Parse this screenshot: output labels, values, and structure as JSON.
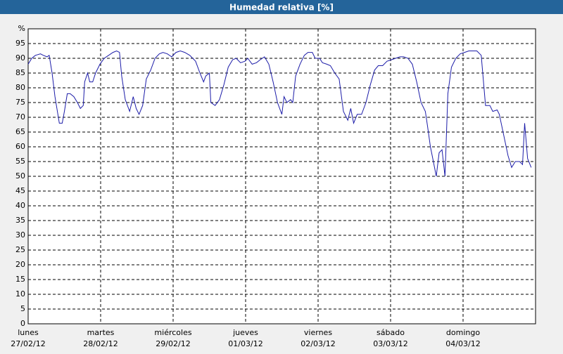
{
  "chart_data": {
    "type": "line",
    "title": "Humedad relativa [%]",
    "xlim": [
      0,
      7
    ],
    "xticks": [
      {
        "value": 0,
        "label": "lunes",
        "date": "27/02/12"
      },
      {
        "value": 1,
        "label": "martes",
        "date": "28/02/12"
      },
      {
        "value": 2,
        "label": "miércoles",
        "date": "29/02/12"
      },
      {
        "value": 3,
        "label": "jueves",
        "date": "01/03/12"
      },
      {
        "value": 4,
        "label": "viernes",
        "date": "02/03/12"
      },
      {
        "value": 5,
        "label": "sábado",
        "date": "03/03/12"
      },
      {
        "value": 6,
        "label": "domingo",
        "date": "04/03/12"
      }
    ],
    "ylim": [
      0,
      100
    ],
    "yticks": [
      0,
      5,
      10,
      15,
      20,
      25,
      30,
      35,
      40,
      45,
      50,
      55,
      60,
      65,
      70,
      75,
      80,
      85,
      90,
      95,
      {
        "value": 100,
        "label": "%"
      }
    ],
    "grid": true,
    "color": "#1c1ca8",
    "x": [
      0,
      0.05,
      0.1,
      0.17,
      0.21,
      0.26,
      0.29,
      0.33,
      0.37,
      0.43,
      0.47,
      0.5,
      0.54,
      0.58,
      0.63,
      0.68,
      0.72,
      0.76,
      0.78,
      0.82,
      0.85,
      0.89,
      0.93,
      0.99,
      1.05,
      1.11,
      1.17,
      1.22,
      1.26,
      1.29,
      1.34,
      1.4,
      1.45,
      1.49,
      1.53,
      1.58,
      1.63,
      1.69,
      1.75,
      1.81,
      1.86,
      1.92,
      1.98,
      2.04,
      2.1,
      2.16,
      2.23,
      2.31,
      2.37,
      2.42,
      2.45,
      2.5,
      2.52,
      2.58,
      2.64,
      2.7,
      2.76,
      2.82,
      2.87,
      2.93,
      2.99,
      3.03,
      3.09,
      3.15,
      3.2,
      3.26,
      3.32,
      3.38,
      3.44,
      3.5,
      3.53,
      3.57,
      3.62,
      3.65,
      3.69,
      3.75,
      3.81,
      3.86,
      3.92,
      3.96,
      4.02,
      4.06,
      4.12,
      4.17,
      4.23,
      4.29,
      4.35,
      4.41,
      4.45,
      4.49,
      4.54,
      4.6,
      4.66,
      4.72,
      4.78,
      4.83,
      4.89,
      4.95,
      5.01,
      5.07,
      5.13,
      5.18,
      5.24,
      5.3,
      5.36,
      5.42,
      5.48,
      5.51,
      5.55,
      5.59,
      5.63,
      5.67,
      5.71,
      5.75,
      5.79,
      5.84,
      5.9,
      5.96,
      6.02,
      6.08,
      6.14,
      6.19,
      6.25,
      6.31,
      6.37,
      6.41,
      6.47,
      6.5,
      6.56,
      6.62,
      6.67,
      6.72,
      6.78,
      6.82,
      6.85,
      6.89,
      6.94
    ],
    "values": [
      88,
      90,
      91,
      91.5,
      91,
      90.5,
      91,
      85,
      77,
      68,
      68,
      72,
      78,
      78,
      77,
      75,
      73,
      74,
      82,
      85,
      82,
      82,
      85,
      88,
      90,
      91,
      92,
      92.5,
      92,
      84,
      76,
      72,
      77,
      73,
      71,
      74,
      83,
      86,
      90,
      91.5,
      92,
      91.5,
      90.5,
      92,
      92.5,
      92,
      91,
      89,
      85,
      82,
      84,
      85,
      75,
      74,
      76,
      81,
      87,
      89.5,
      90,
      88.5,
      89,
      90,
      88,
      88.5,
      89.5,
      90.5,
      88,
      82,
      75,
      71,
      77,
      75,
      76,
      75,
      84,
      88,
      91,
      92,
      92,
      90,
      90,
      88.5,
      88,
      87.5,
      85,
      83,
      72,
      69,
      73,
      68,
      71,
      71,
      75,
      81,
      86,
      87.5,
      87.5,
      89,
      89.5,
      90,
      90.5,
      90.5,
      90,
      88,
      82,
      75,
      72,
      67,
      60,
      55,
      50,
      58,
      59,
      50,
      78,
      87,
      90,
      91.5,
      92,
      92.5,
      92.5,
      92.5,
      91,
      74,
      74,
      72,
      72.5,
      71,
      64,
      57,
      53,
      55,
      55,
      54,
      68,
      56,
      53
    ]
  }
}
